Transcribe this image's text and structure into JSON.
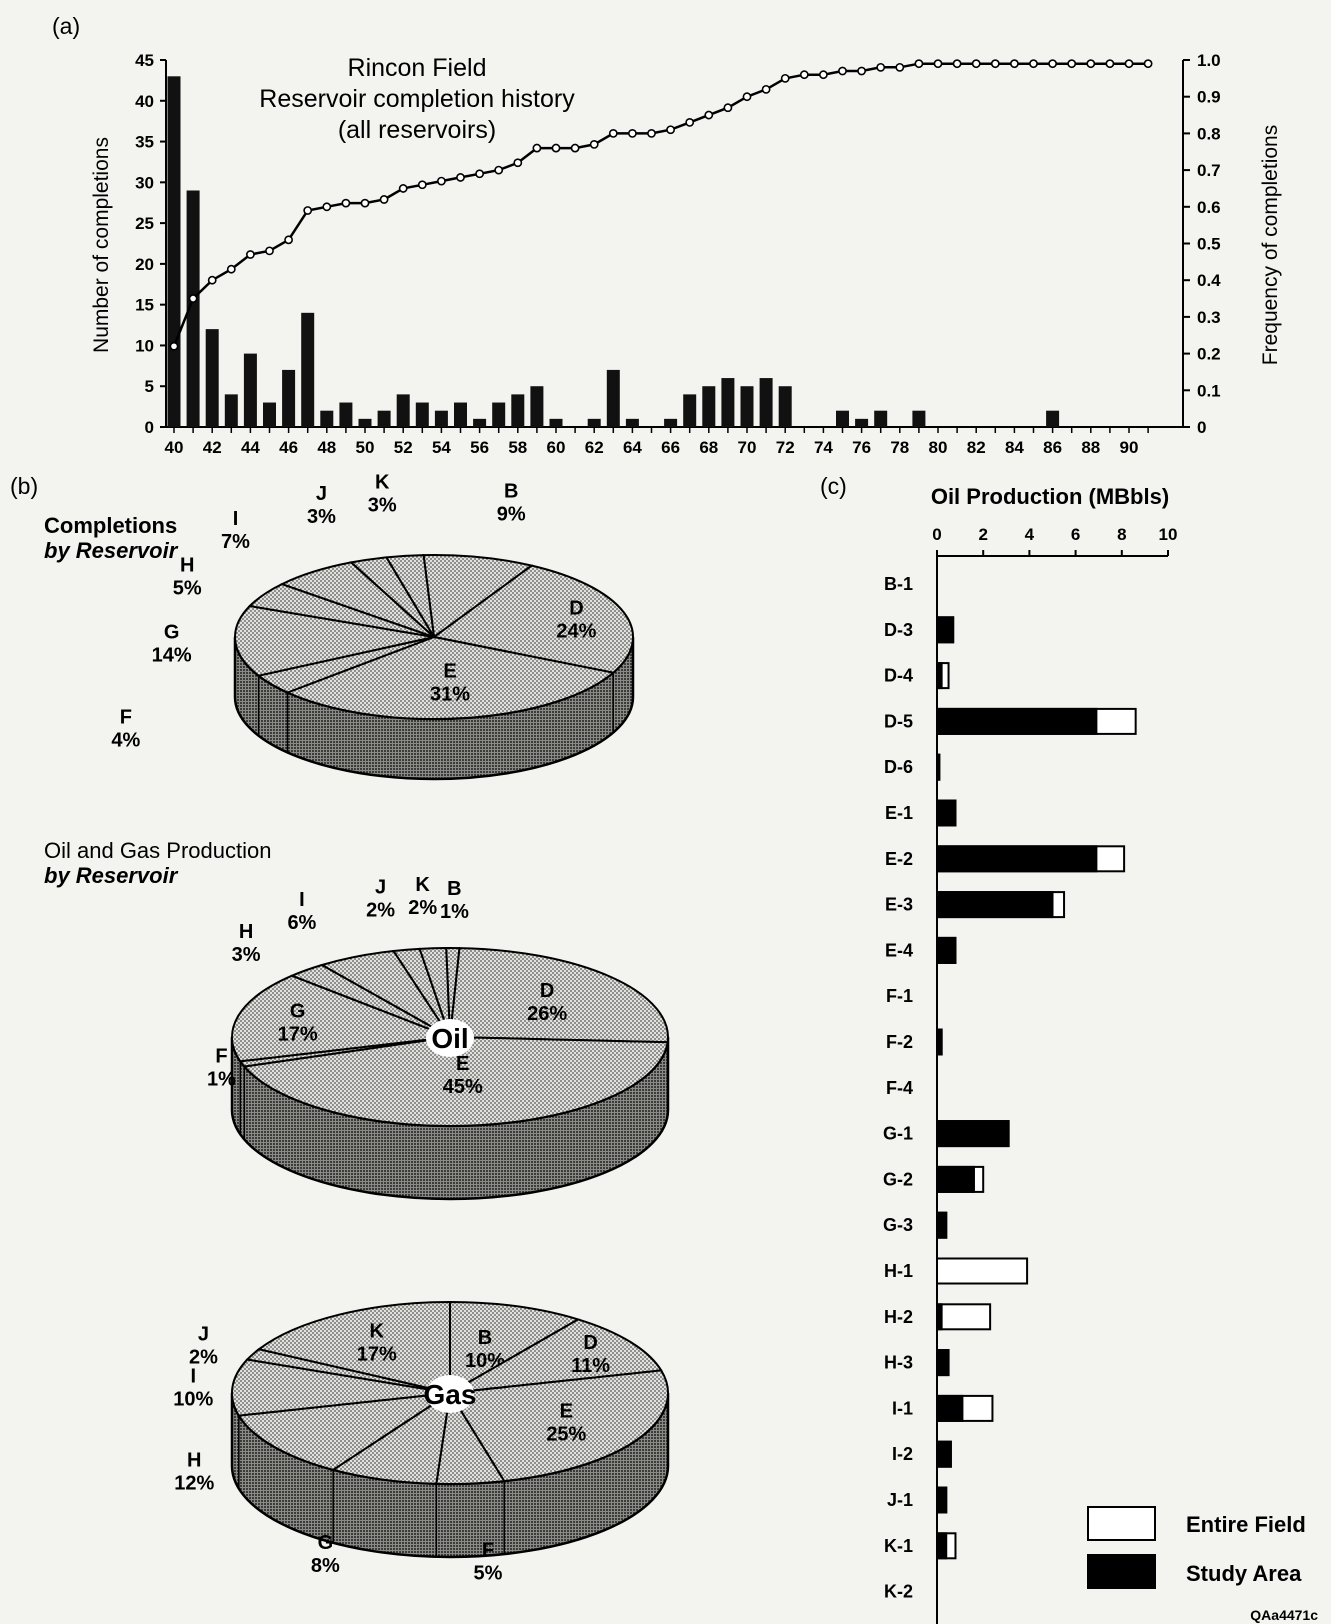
{
  "panels": {
    "a": "(a)",
    "b": "(b)",
    "c": "(c)"
  },
  "figure_code": "QAa4471c",
  "chart_data": [
    {
      "id": "a",
      "type": "bar",
      "title_lines": [
        "Rincon Field",
        "Reservoir completion history",
        "(all reservoirs)"
      ],
      "xlabel": "",
      "ylabel": "Number of completions",
      "y2label": "Frequency of completions",
      "ylim": [
        0,
        45
      ],
      "y2lim": [
        0,
        1.0
      ],
      "yticks": [
        0,
        5,
        10,
        15,
        20,
        25,
        30,
        35,
        40,
        45
      ],
      "y2ticks": [
        "0",
        "0.1",
        "0.2",
        "0.3",
        "0.4",
        "0.5",
        "0.6",
        "0.7",
        "0.8",
        "0.9",
        "1.0"
      ],
      "xticks": [
        40,
        42,
        44,
        46,
        48,
        50,
        52,
        54,
        56,
        58,
        60,
        62,
        64,
        66,
        68,
        70,
        72,
        74,
        76,
        78,
        80,
        82,
        84,
        86,
        88,
        90
      ],
      "years": [
        40,
        41,
        42,
        43,
        44,
        45,
        46,
        47,
        48,
        49,
        50,
        51,
        52,
        53,
        54,
        55,
        56,
        57,
        58,
        59,
        60,
        61,
        62,
        63,
        64,
        65,
        66,
        67,
        68,
        69,
        70,
        71,
        72,
        73,
        74,
        75,
        76,
        77,
        78,
        79,
        80,
        81,
        82,
        83,
        84,
        85,
        86,
        87,
        88,
        89,
        90,
        91
      ],
      "series": [
        {
          "name": "Number of completions",
          "type": "bar",
          "values": [
            43,
            29,
            12,
            4,
            9,
            3,
            7,
            14,
            2,
            3,
            1,
            2,
            4,
            3,
            2,
            3,
            1,
            3,
            4,
            5,
            1,
            0,
            1,
            7,
            1,
            0,
            1,
            4,
            5,
            6,
            5,
            6,
            5,
            0,
            0,
            2,
            1,
            2,
            0,
            2,
            0,
            0,
            0,
            0,
            0,
            0,
            2,
            0,
            0,
            0,
            0,
            0
          ]
        },
        {
          "name": "Frequency of completions",
          "type": "line",
          "values": [
            0.22,
            0.35,
            0.4,
            0.43,
            0.47,
            0.48,
            0.51,
            0.59,
            0.6,
            0.61,
            0.61,
            0.62,
            0.65,
            0.66,
            0.67,
            0.68,
            0.69,
            0.7,
            0.72,
            0.76,
            0.76,
            0.76,
            0.77,
            0.8,
            0.8,
            0.8,
            0.81,
            0.83,
            0.85,
            0.87,
            0.9,
            0.92,
            0.95,
            0.96,
            0.96,
            0.97,
            0.97,
            0.98,
            0.98,
            0.99,
            0.99,
            0.99,
            0.99,
            0.99,
            0.99,
            0.99,
            0.99,
            0.99,
            0.99,
            0.99,
            0.99,
            0.99
          ]
        }
      ]
    },
    {
      "id": "b1",
      "type": "pie",
      "title": "Completions",
      "subtitle": "by Reservoir",
      "center_label": "",
      "slices": [
        {
          "label": "B",
          "value": 9,
          "text": "9%"
        },
        {
          "label": "D",
          "value": 24,
          "text": "24%"
        },
        {
          "label": "E",
          "value": 31,
          "text": "31%"
        },
        {
          "label": "F",
          "value": 4,
          "text": "4%"
        },
        {
          "label": "G",
          "value": 14,
          "text": "14%"
        },
        {
          "label": "H",
          "value": 5,
          "text": "5%"
        },
        {
          "label": "I",
          "value": 7,
          "text": "7%"
        },
        {
          "label": "J",
          "value": 3,
          "text": "3%"
        },
        {
          "label": "K",
          "value": 3,
          "text": "3%"
        }
      ]
    },
    {
      "id": "b2",
      "type": "pie",
      "title": "Oil and Gas Production",
      "subtitle": "by Reservoir",
      "center_label": "Oil",
      "slices": [
        {
          "label": "B",
          "value": 1,
          "text": "1%"
        },
        {
          "label": "D",
          "value": 26,
          "text": "26%"
        },
        {
          "label": "E",
          "value": 45,
          "text": "45%"
        },
        {
          "label": "F",
          "value": 1,
          "text": "1%"
        },
        {
          "label": "G",
          "value": 17,
          "text": "17%"
        },
        {
          "label": "H",
          "value": 3,
          "text": "3%"
        },
        {
          "label": "I",
          "value": 6,
          "text": "6%"
        },
        {
          "label": "J",
          "value": 2,
          "text": "2%"
        },
        {
          "label": "K",
          "value": 2,
          "text": "2%"
        }
      ]
    },
    {
      "id": "b3",
      "type": "pie",
      "title": "",
      "center_label": "Gas",
      "slices": [
        {
          "label": "B",
          "value": 10,
          "text": "10%"
        },
        {
          "label": "D",
          "value": 11,
          "text": "11%"
        },
        {
          "label": "E",
          "value": 25,
          "text": "25%"
        },
        {
          "label": "F",
          "value": 5,
          "text": "5%"
        },
        {
          "label": "G",
          "value": 8,
          "text": "8%"
        },
        {
          "label": "H",
          "value": 12,
          "text": "12%"
        },
        {
          "label": "I",
          "value": 10,
          "text": "10%"
        },
        {
          "label": "J",
          "value": 2,
          "text": "2%"
        },
        {
          "label": "K",
          "value": 17,
          "text": "17%"
        }
      ]
    },
    {
      "id": "c",
      "type": "bar",
      "orientation": "horizontal",
      "title": "Oil Production (MBbls)",
      "xlim": [
        0,
        10
      ],
      "xticks": [
        0,
        2,
        4,
        6,
        8,
        10
      ],
      "categories": [
        "B-1",
        "D-3",
        "D-4",
        "D-5",
        "D-6",
        "E-1",
        "E-2",
        "E-3",
        "E-4",
        "F-1",
        "F-2",
        "F-4",
        "G-1",
        "G-2",
        "G-3",
        "H-1",
        "H-2",
        "H-3",
        "I-1",
        "I-2",
        "J-1",
        "K-1",
        "K-2"
      ],
      "series": [
        {
          "name": "Entire Field",
          "color": "#ffffff",
          "values": [
            0,
            0.7,
            0.5,
            8.6,
            0.1,
            0.8,
            8.1,
            5.5,
            0.8,
            0,
            0.2,
            0,
            3.1,
            2.0,
            0.4,
            3.9,
            2.3,
            0.5,
            2.4,
            0.6,
            0.4,
            0.8,
            0
          ]
        },
        {
          "name": "Study Area",
          "color": "#000000",
          "values": [
            0,
            0.7,
            0.2,
            6.9,
            0.1,
            0.8,
            6.9,
            5.0,
            0.8,
            0,
            0.2,
            0,
            3.1,
            1.6,
            0.4,
            0,
            0.2,
            0.5,
            1.1,
            0.6,
            0.4,
            0.4,
            0
          ]
        }
      ]
    }
  ]
}
